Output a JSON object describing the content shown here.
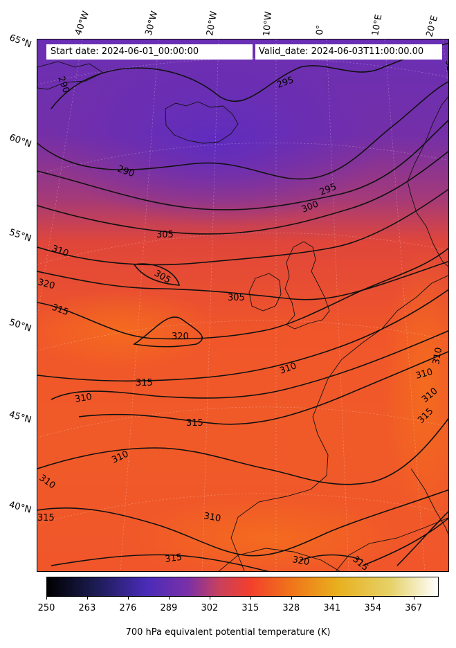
{
  "header": {
    "start_date": "Start date: 2024-06-01_00:00:00",
    "valid_date": "Valid_date: 2024-06-03T11:00:00.00"
  },
  "axes": {
    "longitude_labels": [
      "40°W",
      "30°W",
      "20°W",
      "10°W",
      "0°",
      "10°E",
      "20°E"
    ],
    "latitude_labels": [
      "65°N",
      "60°N",
      "55°N",
      "50°N",
      "45°N",
      "40°N"
    ]
  },
  "contours": {
    "labels": [
      "290",
      "290",
      "295",
      "295",
      "300",
      "305",
      "305",
      "305",
      "310",
      "310",
      "310",
      "310",
      "310",
      "310",
      "310",
      "310",
      "315",
      "315",
      "315",
      "315",
      "315",
      "315",
      "320",
      "320",
      "320",
      "320",
      "315",
      "310"
    ]
  },
  "colorbar": {
    "title": "700 hPa equivalent potential temperature (K)",
    "tick_labels": [
      "250",
      "263",
      "276",
      "289",
      "302",
      "315",
      "328",
      "341",
      "354",
      "367"
    ],
    "range": [
      250,
      375
    ],
    "colormap": "CMRmap",
    "stops": [
      {
        "value": 250,
        "color": "#000000"
      },
      {
        "value": 265,
        "color": "#1b1b50"
      },
      {
        "value": 282,
        "color": "#4a2cb8"
      },
      {
        "value": 295,
        "color": "#7a30a8"
      },
      {
        "value": 305,
        "color": "#c8405e"
      },
      {
        "value": 315,
        "color": "#f2402c"
      },
      {
        "value": 328,
        "color": "#f0741a"
      },
      {
        "value": 343,
        "color": "#e8b01e"
      },
      {
        "value": 360,
        "color": "#e6d26a"
      },
      {
        "value": 375,
        "color": "#ffffff"
      }
    ]
  },
  "colors": {
    "cold_core": "#6a2fb4",
    "cool": "#8a3296",
    "mild": "#d2403c",
    "warm": "#f2482a",
    "hot": "#f26a1e"
  }
}
